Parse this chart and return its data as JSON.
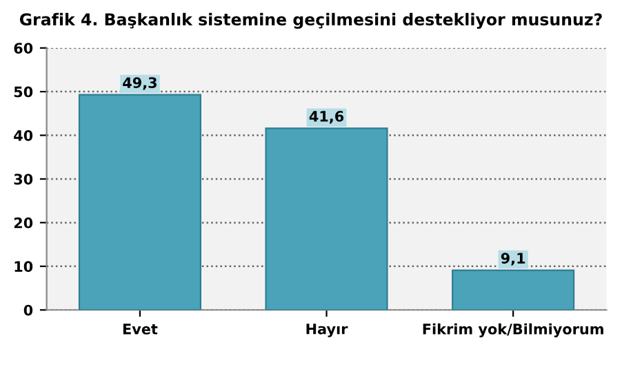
{
  "chart_data": {
    "type": "bar",
    "title": "Grafik 4. Başkanlık sistemine geçilmesini destekliyor musunuz?",
    "categories": [
      "Evet",
      "Hayır",
      "Fikrim yok/Bilmiyorum"
    ],
    "values": [
      49.3,
      41.6,
      9.1
    ],
    "value_labels": [
      "49,3",
      "41,6",
      "9,1"
    ],
    "color": "#4aa3b8",
    "ylim": [
      0,
      60
    ],
    "yticks": [
      0,
      10,
      20,
      30,
      40,
      50,
      60
    ],
    "grid": "y"
  }
}
